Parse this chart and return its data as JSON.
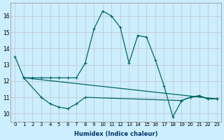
{
  "xlabel": "Humidex (Indice chaleur)",
  "bg_color": "#cceeff",
  "grid_color": "#bbbbbb",
  "line_color": "#006666",
  "xlim": [
    -0.5,
    23.5
  ],
  "ylim": [
    9.5,
    16.8
  ],
  "xticks": [
    0,
    1,
    2,
    3,
    4,
    5,
    6,
    7,
    8,
    9,
    10,
    11,
    12,
    13,
    14,
    15,
    16,
    17,
    18,
    19,
    20,
    21,
    22,
    23
  ],
  "yticks": [
    10,
    11,
    12,
    13,
    14,
    15,
    16
  ],
  "line1_x": [
    0,
    1,
    2,
    3,
    4,
    5,
    6,
    7,
    8,
    9,
    10,
    11,
    12,
    13,
    14,
    15,
    16,
    17,
    18,
    19,
    20,
    21,
    22,
    23
  ],
  "line1_y": [
    13.5,
    12.2,
    12.2,
    12.2,
    12.2,
    12.2,
    12.2,
    12.2,
    13.1,
    15.2,
    16.3,
    16.0,
    15.3,
    13.1,
    14.8,
    14.7,
    13.3,
    11.7,
    9.8,
    10.8,
    11.0,
    11.1,
    10.9,
    10.9
  ],
  "line2_x": [
    1,
    23
  ],
  "line2_y": [
    12.2,
    10.9
  ],
  "line3_x": [
    1,
    3,
    4,
    5,
    6,
    7,
    8,
    19,
    20,
    21,
    22,
    23
  ],
  "line3_y": [
    12.2,
    11.0,
    10.6,
    10.4,
    10.3,
    10.6,
    11.0,
    10.8,
    11.0,
    11.1,
    10.9,
    10.9
  ]
}
